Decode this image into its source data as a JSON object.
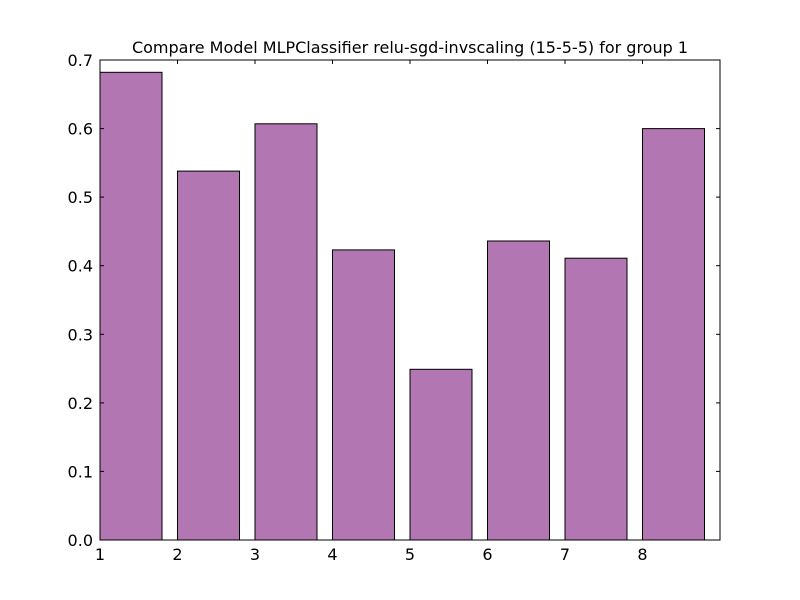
{
  "chart_data": {
    "type": "bar",
    "title": "Compare Model MLPClassifier relu-sgd-invscaling (15-5-5) for group 1",
    "xlabel": "",
    "ylabel": "",
    "categories": [
      "1",
      "2",
      "3",
      "4",
      "5",
      "6",
      "7",
      "8"
    ],
    "x": [
      1,
      2,
      3,
      4,
      5,
      6,
      7,
      8
    ],
    "values": [
      0.682,
      0.538,
      0.607,
      0.423,
      0.249,
      0.436,
      0.411,
      0.6
    ],
    "xlim": [
      1,
      9
    ],
    "ylim": [
      0,
      0.7
    ],
    "xticks": [
      "1",
      "2",
      "3",
      "4",
      "5",
      "6",
      "7",
      "8"
    ],
    "yticks": [
      "0.0",
      "0.1",
      "0.2",
      "0.3",
      "0.4",
      "0.5",
      "0.6",
      "0.7"
    ],
    "bar_color": "#b276b2",
    "edge_color": "#000000",
    "grid": false
  }
}
